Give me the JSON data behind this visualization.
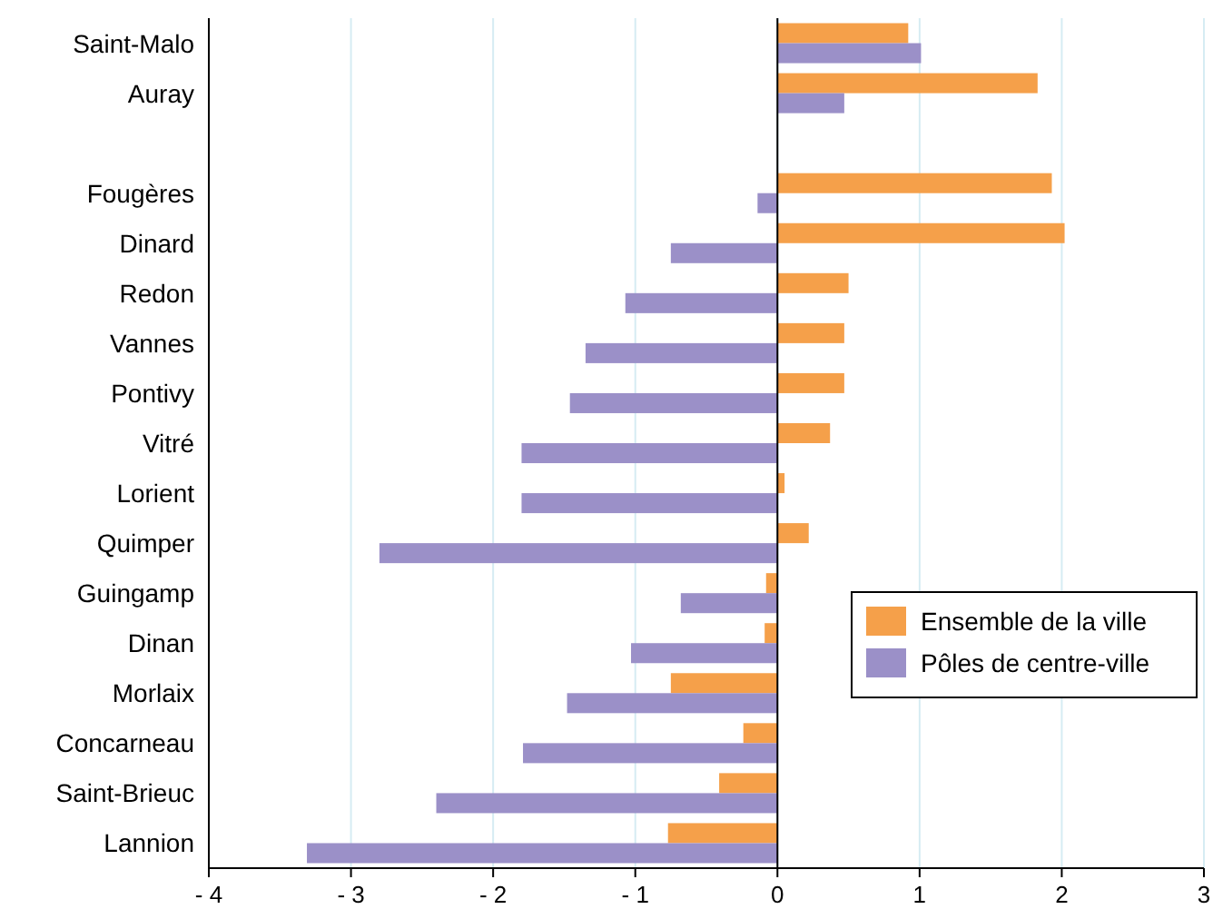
{
  "chart_data": {
    "type": "bar",
    "orientation": "horizontal",
    "categories": [
      "Saint-Malo",
      "Auray",
      null,
      "Fougères",
      "Dinard",
      "Redon",
      "Vannes",
      "Pontivy",
      "Vitré",
      "Lorient",
      "Quimper",
      "Guingamp",
      "Dinan",
      "Morlaix",
      "Concarneau",
      "Saint-Brieuc",
      "Lannion"
    ],
    "series": [
      {
        "name": "Ensemble de la ville",
        "color": "#f5a04a",
        "values": [
          0.92,
          1.83,
          null,
          1.93,
          2.02,
          0.5,
          0.47,
          0.47,
          0.37,
          0.05,
          0.22,
          -0.08,
          -0.09,
          -0.75,
          -0.24,
          -0.41,
          -0.77
        ]
      },
      {
        "name": "Pôles de centre-ville",
        "color": "#9b90c8",
        "values": [
          1.01,
          0.47,
          null,
          -0.14,
          -0.75,
          -1.07,
          -1.35,
          -1.46,
          -1.8,
          -1.8,
          -2.8,
          -0.68,
          -1.03,
          -1.48,
          -1.79,
          -2.4,
          -3.31
        ]
      }
    ],
    "xlim": [
      -4,
      3
    ],
    "xticks": [
      {
        "value": -4,
        "label": "- 4"
      },
      {
        "value": -3,
        "label": "- 3"
      },
      {
        "value": -2,
        "label": "- 2"
      },
      {
        "value": -1,
        "label": "- 1"
      },
      0,
      1,
      2,
      3
    ],
    "grid": "x",
    "legend": "bottom right"
  }
}
